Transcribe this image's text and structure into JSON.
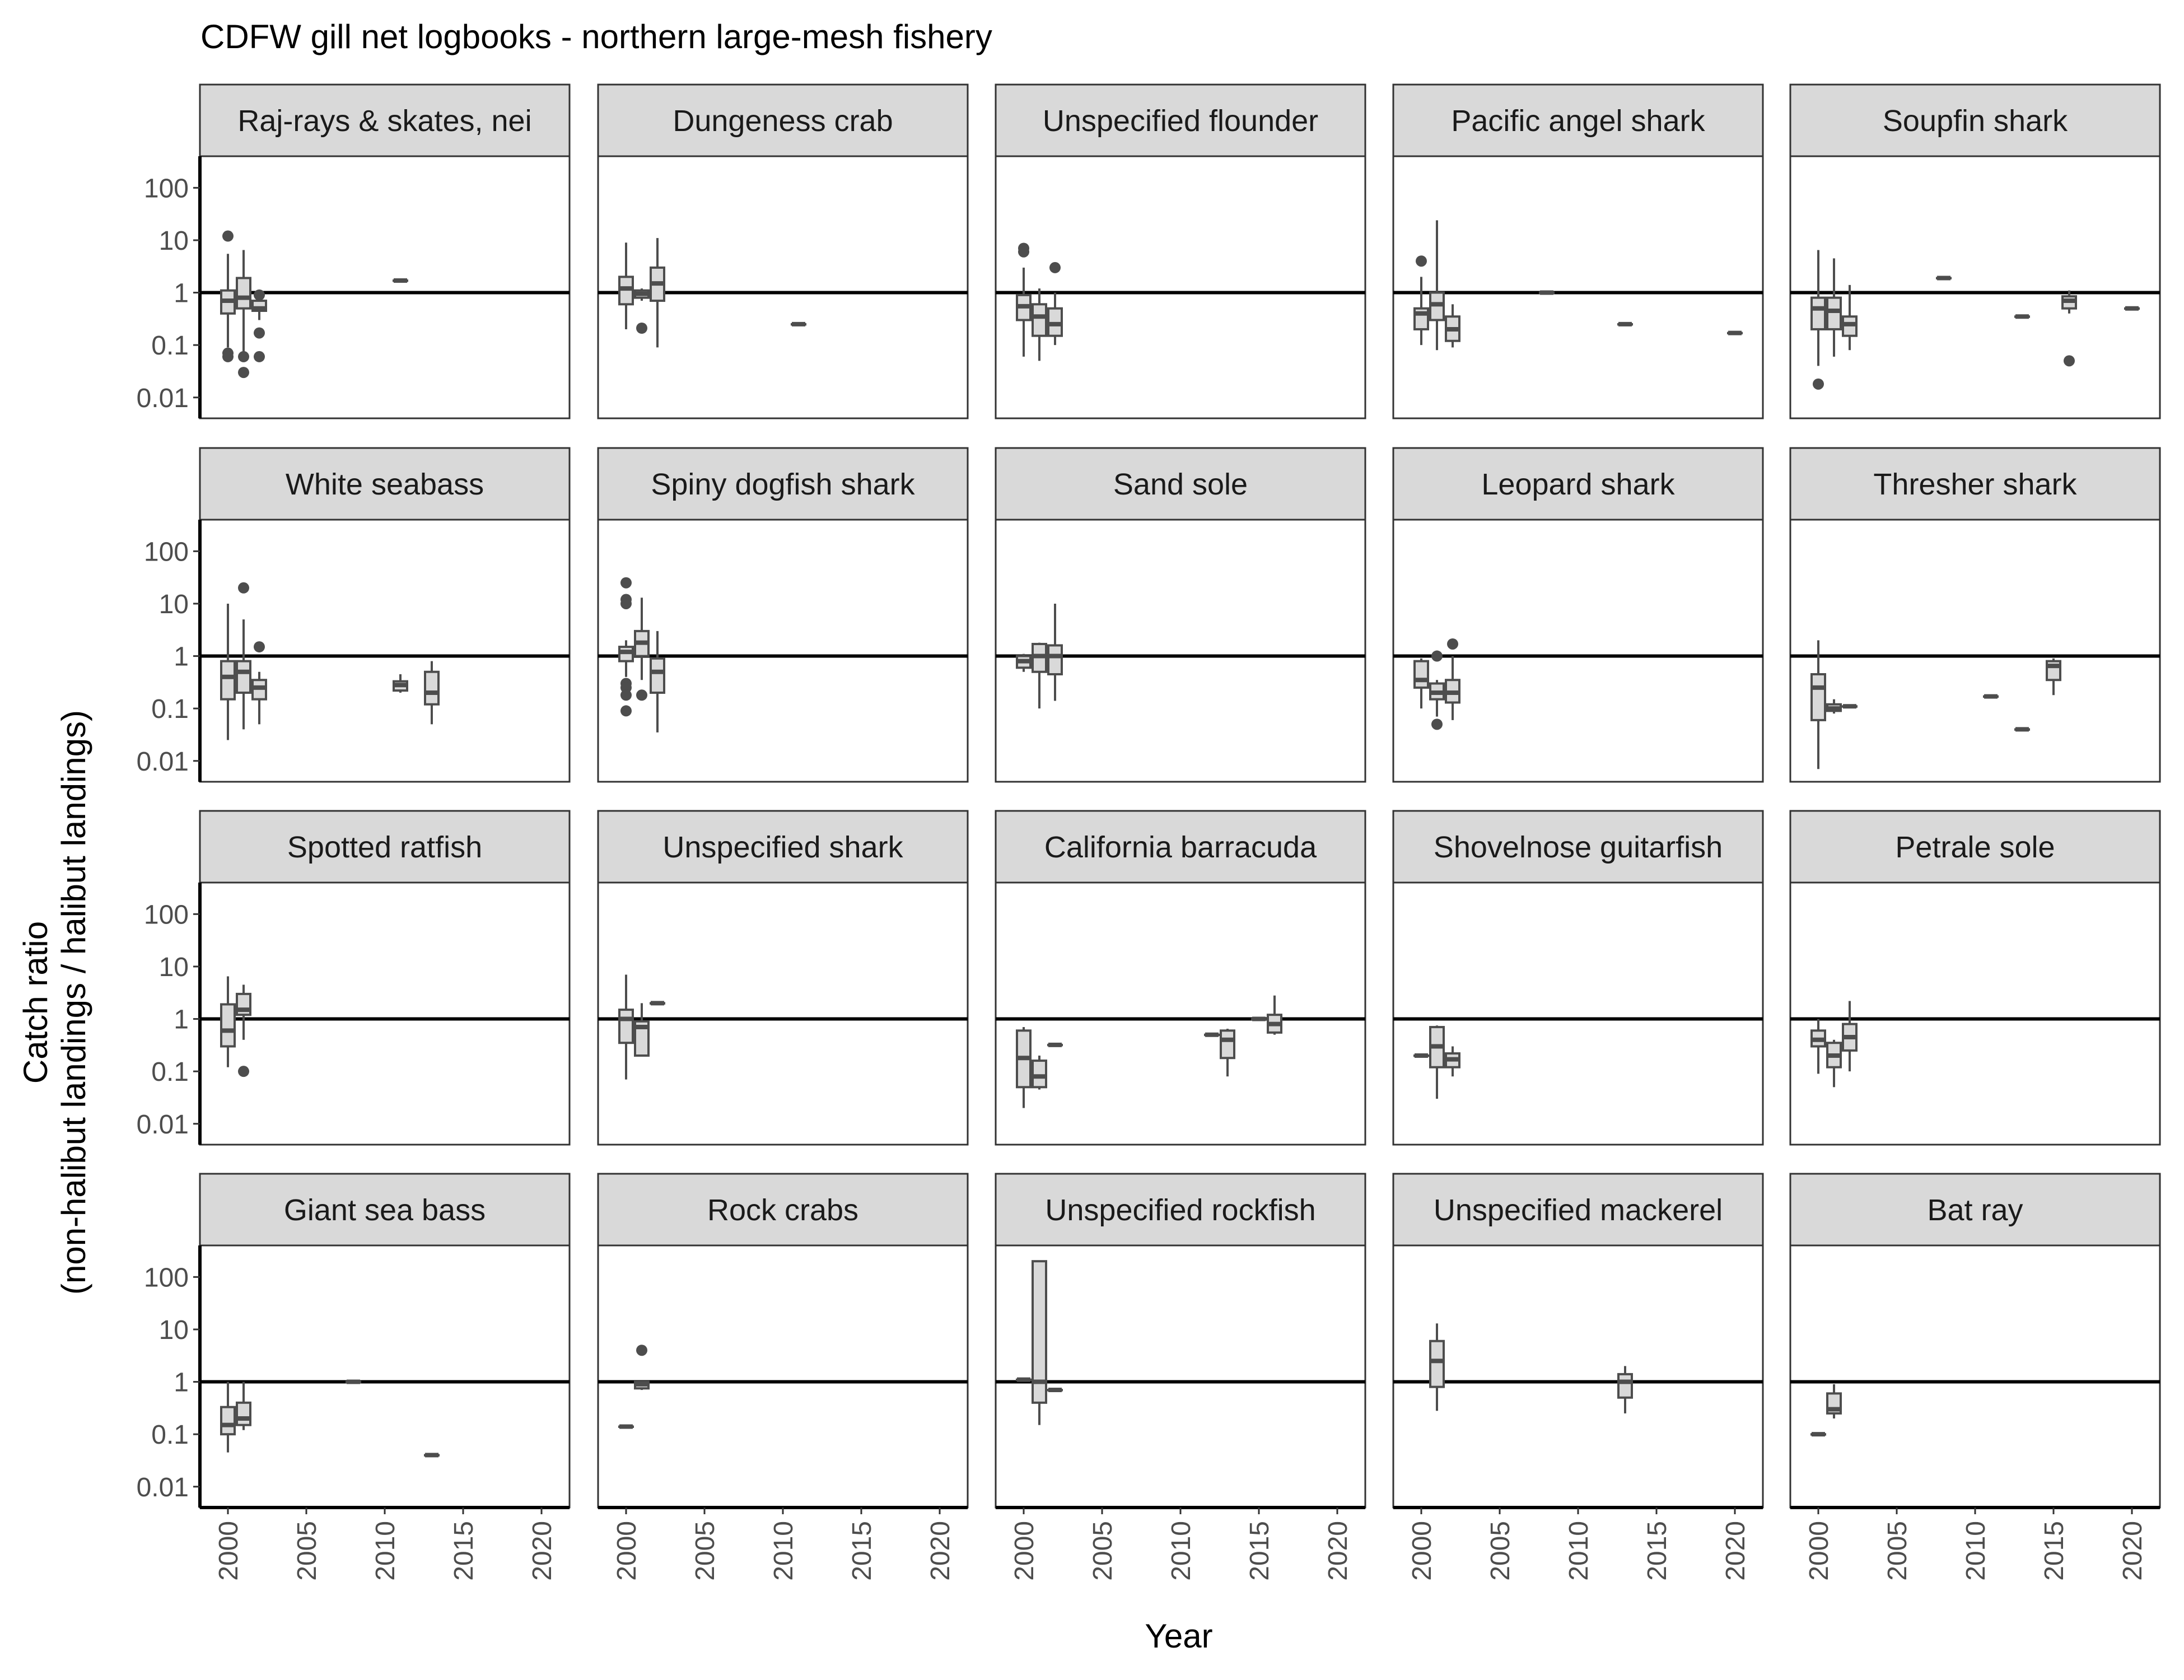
{
  "chart_data": {
    "type": "boxplot",
    "title": "CDFW gill net logbooks - northern large-mesh fishery",
    "xlabel": "Year",
    "ylabel_line1": "Catch ratio",
    "ylabel_line2": "(non-halibut landings / halibut landings)",
    "y_scale": "log10",
    "ylim": [
      0.004,
      400
    ],
    "y_ticks": [
      0.01,
      0.1,
      1,
      10,
      100
    ],
    "y_tick_labels": [
      "0.01",
      "0.1",
      "1",
      "10",
      "100"
    ],
    "xlim": [
      1999,
      2021
    ],
    "x_ticks": [
      2000,
      2005,
      2010,
      2015,
      2020
    ],
    "x_tick_labels": [
      "2000",
      "2005",
      "2010",
      "2015",
      "2020"
    ],
    "reference_line_y": 1,
    "panels": [
      {
        "name": "Raj-rays & skates, nei",
        "boxes": [
          {
            "year": 2000,
            "low": 0.09,
            "q1": 0.4,
            "median": 0.7,
            "q3": 1.1,
            "high": 5.5,
            "outliers": [
              12,
              0.07,
              0.06
            ]
          },
          {
            "year": 2001,
            "low": 0.07,
            "q1": 0.5,
            "median": 0.8,
            "q3": 1.9,
            "high": 6.5,
            "outliers": [
              0.06,
              0.03
            ]
          },
          {
            "year": 2002,
            "low": 0.3,
            "q1": 0.45,
            "median": 0.5,
            "q3": 0.7,
            "high": 1.0,
            "outliers": [
              0.17,
              0.06,
              0.9
            ]
          },
          {
            "year": 2011,
            "low": 1.7,
            "q1": 1.7,
            "median": 1.7,
            "q3": 1.7,
            "high": 1.7,
            "outliers": []
          }
        ]
      },
      {
        "name": "Dungeness crab",
        "boxes": [
          {
            "year": 2000,
            "low": 0.2,
            "q1": 0.6,
            "median": 1.2,
            "q3": 2.0,
            "high": 9.0,
            "outliers": []
          },
          {
            "year": 2001,
            "low": 0.7,
            "q1": 0.8,
            "median": 0.95,
            "q3": 1.1,
            "high": 1.2,
            "outliers": [
              0.21
            ]
          },
          {
            "year": 2002,
            "low": 0.09,
            "q1": 0.7,
            "median": 1.5,
            "q3": 3.0,
            "high": 11,
            "outliers": []
          },
          {
            "year": 2011,
            "low": 0.25,
            "q1": 0.25,
            "median": 0.25,
            "q3": 0.25,
            "high": 0.25,
            "outliers": []
          }
        ]
      },
      {
        "name": "Unspecified flounder",
        "boxes": [
          {
            "year": 2000,
            "low": 0.06,
            "q1": 0.3,
            "median": 0.55,
            "q3": 0.9,
            "high": 3.0,
            "outliers": [
              7,
              6
            ]
          },
          {
            "year": 2001,
            "low": 0.05,
            "q1": 0.15,
            "median": 0.35,
            "q3": 0.6,
            "high": 1.2,
            "outliers": []
          },
          {
            "year": 2002,
            "low": 0.1,
            "q1": 0.15,
            "median": 0.25,
            "q3": 0.5,
            "high": 1.0,
            "outliers": [
              3
            ]
          }
        ]
      },
      {
        "name": "Pacific angel shark",
        "boxes": [
          {
            "year": 2000,
            "low": 0.1,
            "q1": 0.2,
            "median": 0.4,
            "q3": 0.5,
            "high": 2.0,
            "outliers": [
              4
            ]
          },
          {
            "year": 2001,
            "low": 0.08,
            "q1": 0.3,
            "median": 0.6,
            "q3": 1.0,
            "high": 24,
            "outliers": []
          },
          {
            "year": 2002,
            "low": 0.09,
            "q1": 0.12,
            "median": 0.2,
            "q3": 0.35,
            "high": 0.6,
            "outliers": []
          },
          {
            "year": 2008,
            "low": 1.0,
            "q1": 1.0,
            "median": 1.0,
            "q3": 1.0,
            "high": 1.0,
            "outliers": []
          },
          {
            "year": 2013,
            "low": 0.25,
            "q1": 0.25,
            "median": 0.25,
            "q3": 0.25,
            "high": 0.25,
            "outliers": []
          },
          {
            "year": 2020,
            "low": 0.17,
            "q1": 0.17,
            "median": 0.17,
            "q3": 0.17,
            "high": 0.17,
            "outliers": []
          }
        ]
      },
      {
        "name": "Soupfin shark",
        "boxes": [
          {
            "year": 2000,
            "low": 0.04,
            "q1": 0.2,
            "median": 0.5,
            "q3": 0.8,
            "high": 6.5,
            "outliers": [
              0.018
            ]
          },
          {
            "year": 2001,
            "low": 0.06,
            "q1": 0.2,
            "median": 0.45,
            "q3": 0.8,
            "high": 4.5,
            "outliers": []
          },
          {
            "year": 2002,
            "low": 0.08,
            "q1": 0.15,
            "median": 0.25,
            "q3": 0.35,
            "high": 1.4,
            "outliers": []
          },
          {
            "year": 2008,
            "low": 1.9,
            "q1": 1.9,
            "median": 1.9,
            "q3": 1.9,
            "high": 1.9,
            "outliers": []
          },
          {
            "year": 2013,
            "low": 0.35,
            "q1": 0.35,
            "median": 0.35,
            "q3": 0.35,
            "high": 0.35,
            "outliers": []
          },
          {
            "year": 2016,
            "low": 0.4,
            "q1": 0.5,
            "median": 0.7,
            "q3": 0.85,
            "high": 1.1,
            "outliers": [
              0.05
            ]
          },
          {
            "year": 2020,
            "low": 0.5,
            "q1": 0.5,
            "median": 0.5,
            "q3": 0.5,
            "high": 0.5,
            "outliers": []
          }
        ]
      },
      {
        "name": "White seabass",
        "boxes": [
          {
            "year": 2000,
            "low": 0.025,
            "q1": 0.15,
            "median": 0.4,
            "q3": 0.8,
            "high": 10,
            "outliers": []
          },
          {
            "year": 2001,
            "low": 0.04,
            "q1": 0.2,
            "median": 0.5,
            "q3": 0.8,
            "high": 5,
            "outliers": [
              20
            ]
          },
          {
            "year": 2002,
            "low": 0.05,
            "q1": 0.15,
            "median": 0.25,
            "q3": 0.35,
            "high": 0.5,
            "outliers": [
              1.5
            ]
          },
          {
            "year": 2011,
            "low": 0.2,
            "q1": 0.22,
            "median": 0.28,
            "q3": 0.33,
            "high": 0.45,
            "outliers": []
          },
          {
            "year": 2013,
            "low": 0.05,
            "q1": 0.12,
            "median": 0.2,
            "q3": 0.5,
            "high": 0.8,
            "outliers": []
          }
        ]
      },
      {
        "name": "Spiny dogfish shark",
        "boxes": [
          {
            "year": 2000,
            "low": 0.4,
            "q1": 0.8,
            "median": 1.2,
            "q3": 1.5,
            "high": 2.0,
            "outliers": [
              25,
              12,
              10,
              0.3,
              0.25,
              0.18,
              0.09
            ]
          },
          {
            "year": 2001,
            "low": 0.35,
            "q1": 1.0,
            "median": 1.8,
            "q3": 3.0,
            "high": 13,
            "outliers": [
              0.18
            ]
          },
          {
            "year": 2002,
            "low": 0.035,
            "q1": 0.2,
            "median": 0.5,
            "q3": 0.9,
            "high": 3.0,
            "outliers": []
          }
        ]
      },
      {
        "name": "Sand sole",
        "boxes": [
          {
            "year": 2000,
            "low": 0.5,
            "q1": 0.6,
            "median": 0.8,
            "q3": 1.0,
            "high": 1.1,
            "outliers": []
          },
          {
            "year": 2001,
            "low": 0.1,
            "q1": 0.5,
            "median": 1.0,
            "q3": 1.7,
            "high": 1.8,
            "outliers": []
          },
          {
            "year": 2002,
            "low": 0.14,
            "q1": 0.45,
            "median": 1.0,
            "q3": 1.6,
            "high": 10,
            "outliers": []
          }
        ]
      },
      {
        "name": "Leopard shark",
        "boxes": [
          {
            "year": 2000,
            "low": 0.1,
            "q1": 0.25,
            "median": 0.35,
            "q3": 0.8,
            "high": 0.9,
            "outliers": []
          },
          {
            "year": 2001,
            "low": 0.07,
            "q1": 0.15,
            "median": 0.2,
            "q3": 0.3,
            "high": 0.35,
            "outliers": [
              1.0,
              0.05
            ]
          },
          {
            "year": 2002,
            "low": 0.06,
            "q1": 0.13,
            "median": 0.2,
            "q3": 0.35,
            "high": 1.0,
            "outliers": [
              1.7
            ]
          }
        ]
      },
      {
        "name": "Thresher shark",
        "boxes": [
          {
            "year": 2000,
            "low": 0.007,
            "q1": 0.06,
            "median": 0.25,
            "q3": 0.45,
            "high": 2.0,
            "outliers": []
          },
          {
            "year": 2001,
            "low": 0.08,
            "q1": 0.09,
            "median": 0.1,
            "q3": 0.12,
            "high": 0.15,
            "outliers": []
          },
          {
            "year": 2002,
            "low": 0.11,
            "q1": 0.11,
            "median": 0.11,
            "q3": 0.11,
            "high": 0.11,
            "outliers": []
          },
          {
            "year": 2011,
            "low": 0.17,
            "q1": 0.17,
            "median": 0.17,
            "q3": 0.17,
            "high": 0.17,
            "outliers": []
          },
          {
            "year": 2013,
            "low": 0.04,
            "q1": 0.04,
            "median": 0.04,
            "q3": 0.04,
            "high": 0.04,
            "outliers": []
          },
          {
            "year": 2015,
            "low": 0.18,
            "q1": 0.35,
            "median": 0.65,
            "q3": 0.8,
            "high": 0.9,
            "outliers": []
          }
        ]
      },
      {
        "name": "Spotted ratfish",
        "boxes": [
          {
            "year": 2000,
            "low": 0.12,
            "q1": 0.3,
            "median": 0.6,
            "q3": 1.9,
            "high": 6.5,
            "outliers": []
          },
          {
            "year": 2001,
            "low": 0.4,
            "q1": 1.2,
            "median": 1.5,
            "q3": 3.0,
            "high": 4.5,
            "outliers": [
              0.1
            ]
          }
        ]
      },
      {
        "name": "Unspecified shark",
        "boxes": [
          {
            "year": 2000,
            "low": 0.07,
            "q1": 0.35,
            "median": 1.0,
            "q3": 1.5,
            "high": 7,
            "outliers": []
          },
          {
            "year": 2001,
            "low": 0.2,
            "q1": 0.2,
            "median": 0.7,
            "q3": 0.9,
            "high": 2.0,
            "outliers": []
          },
          {
            "year": 2002,
            "low": 2.0,
            "q1": 2.0,
            "median": 2.0,
            "q3": 2.0,
            "high": 2.0,
            "outliers": []
          }
        ]
      },
      {
        "name": "California barracuda",
        "boxes": [
          {
            "year": 2000,
            "low": 0.02,
            "q1": 0.05,
            "median": 0.18,
            "q3": 0.6,
            "high": 0.7,
            "outliers": []
          },
          {
            "year": 2001,
            "low": 0.045,
            "q1": 0.05,
            "median": 0.08,
            "q3": 0.16,
            "high": 0.2,
            "outliers": []
          },
          {
            "year": 2002,
            "low": 0.32,
            "q1": 0.32,
            "median": 0.32,
            "q3": 0.32,
            "high": 0.32,
            "outliers": []
          },
          {
            "year": 2012,
            "low": 0.5,
            "q1": 0.5,
            "median": 0.5,
            "q3": 0.5,
            "high": 0.5,
            "outliers": []
          },
          {
            "year": 2013,
            "low": 0.08,
            "q1": 0.18,
            "median": 0.4,
            "q3": 0.6,
            "high": 0.65,
            "outliers": []
          },
          {
            "year": 2015,
            "low": 1.0,
            "q1": 1.0,
            "median": 1.0,
            "q3": 1.0,
            "high": 1.0,
            "outliers": []
          },
          {
            "year": 2016,
            "low": 0.5,
            "q1": 0.55,
            "median": 0.8,
            "q3": 1.2,
            "high": 2.8,
            "outliers": []
          }
        ]
      },
      {
        "name": "Shovelnose guitarfish",
        "boxes": [
          {
            "year": 2000,
            "low": 0.2,
            "q1": 0.2,
            "median": 0.2,
            "q3": 0.2,
            "high": 0.2,
            "outliers": []
          },
          {
            "year": 2001,
            "low": 0.03,
            "q1": 0.12,
            "median": 0.3,
            "q3": 0.7,
            "high": 0.75,
            "outliers": []
          },
          {
            "year": 2002,
            "low": 0.08,
            "q1": 0.12,
            "median": 0.17,
            "q3": 0.22,
            "high": 0.3,
            "outliers": []
          }
        ]
      },
      {
        "name": "Petrale sole",
        "boxes": [
          {
            "year": 2000,
            "low": 0.09,
            "q1": 0.3,
            "median": 0.4,
            "q3": 0.6,
            "high": 1.0,
            "outliers": []
          },
          {
            "year": 2001,
            "low": 0.05,
            "q1": 0.12,
            "median": 0.2,
            "q3": 0.35,
            "high": 0.4,
            "outliers": []
          },
          {
            "year": 2002,
            "low": 0.1,
            "q1": 0.25,
            "median": 0.45,
            "q3": 0.8,
            "high": 2.2,
            "outliers": []
          }
        ]
      },
      {
        "name": "Giant sea bass",
        "boxes": [
          {
            "year": 2000,
            "low": 0.045,
            "q1": 0.1,
            "median": 0.15,
            "q3": 0.33,
            "high": 1.0,
            "outliers": []
          },
          {
            "year": 2001,
            "low": 0.12,
            "q1": 0.15,
            "median": 0.2,
            "q3": 0.4,
            "high": 1.0,
            "outliers": []
          },
          {
            "year": 2008,
            "low": 1.0,
            "q1": 1.0,
            "median": 1.0,
            "q3": 1.0,
            "high": 1.0,
            "outliers": []
          },
          {
            "year": 2013,
            "low": 0.04,
            "q1": 0.04,
            "median": 0.04,
            "q3": 0.04,
            "high": 0.04,
            "outliers": []
          }
        ]
      },
      {
        "name": "Rock crabs",
        "boxes": [
          {
            "year": 2000,
            "low": 0.14,
            "q1": 0.14,
            "median": 0.14,
            "q3": 0.14,
            "high": 0.14,
            "outliers": []
          },
          {
            "year": 2001,
            "low": 0.7,
            "q1": 0.75,
            "median": 0.9,
            "q3": 1.0,
            "high": 1.0,
            "outliers": [
              4
            ]
          }
        ]
      },
      {
        "name": "Unspecified rockfish",
        "boxes": [
          {
            "year": 2000,
            "low": 1.1,
            "q1": 1.1,
            "median": 1.1,
            "q3": 1.1,
            "high": 1.1,
            "outliers": []
          },
          {
            "year": 2001,
            "low": 0.15,
            "q1": 0.4,
            "median": 1.0,
            "q3": 200,
            "high": 200,
            "outliers": []
          },
          {
            "year": 2002,
            "low": 0.7,
            "q1": 0.7,
            "median": 0.7,
            "q3": 0.7,
            "high": 0.7,
            "outliers": []
          }
        ]
      },
      {
        "name": "Unspecified mackerel",
        "boxes": [
          {
            "year": 2001,
            "low": 0.28,
            "q1": 0.8,
            "median": 2.5,
            "q3": 6.0,
            "high": 13,
            "outliers": []
          },
          {
            "year": 2013,
            "low": 0.25,
            "q1": 0.5,
            "median": 1.0,
            "q3": 1.4,
            "high": 2.0,
            "outliers": []
          }
        ]
      },
      {
        "name": "Bat ray",
        "boxes": [
          {
            "year": 2000,
            "low": 0.1,
            "q1": 0.1,
            "median": 0.1,
            "q3": 0.1,
            "high": 0.1,
            "outliers": []
          },
          {
            "year": 2001,
            "low": 0.2,
            "q1": 0.25,
            "median": 0.3,
            "q3": 0.6,
            "high": 0.9,
            "outliers": []
          }
        ]
      }
    ]
  }
}
